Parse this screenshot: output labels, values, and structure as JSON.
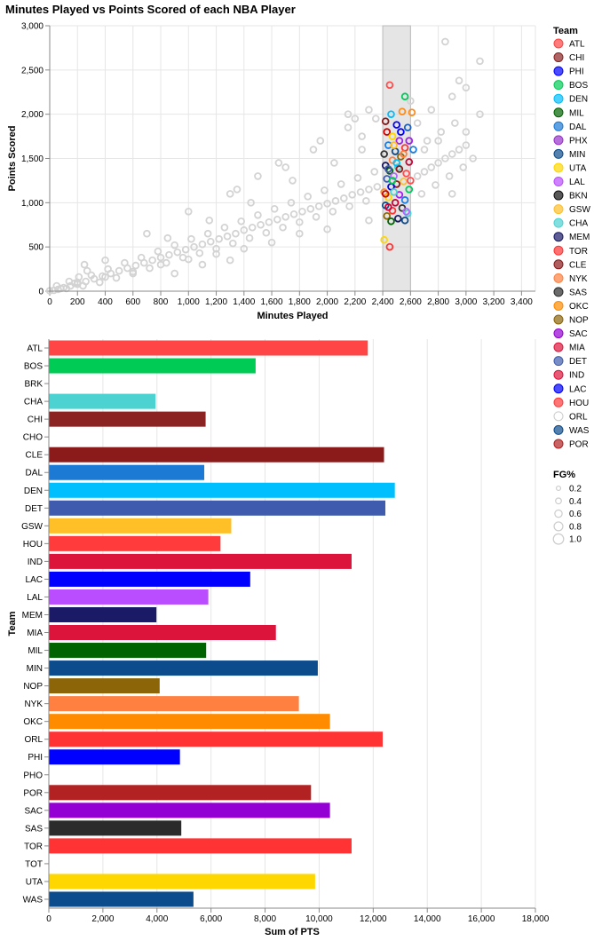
{
  "colors": {
    "grid": "#e6e6e6",
    "axis": "#888888",
    "unselected": "#d3d3d3",
    "brush": "#cccccc"
  },
  "chart_data": [
    {
      "type": "scatter",
      "title": "Minutes Played vs Points Scored of each NBA Player",
      "xlabel": "Minutes Played",
      "ylabel": "Points Scored",
      "xlim": [
        0,
        3500
      ],
      "ylim": [
        0,
        3000
      ],
      "x_ticks": [
        "0",
        "200",
        "400",
        "600",
        "800",
        "1,000",
        "1,200",
        "1,400",
        "1,600",
        "1,800",
        "2,000",
        "2,200",
        "2,400",
        "2,600",
        "2,800",
        "3,000",
        "3,200",
        "3,400"
      ],
      "y_ticks": [
        "0",
        "500",
        "1,000",
        "1,500",
        "2,000",
        "2,500",
        "3,000"
      ],
      "brush_x": [
        2400,
        2600
      ],
      "unselected_points": [
        [
          0,
          5
        ],
        [
          30,
          10
        ],
        [
          60,
          20
        ],
        [
          100,
          40
        ],
        [
          150,
          60
        ],
        [
          200,
          80
        ],
        [
          260,
          110
        ],
        [
          320,
          140
        ],
        [
          380,
          170
        ],
        [
          440,
          200
        ],
        [
          500,
          230
        ],
        [
          560,
          260
        ],
        [
          620,
          290
        ],
        [
          680,
          320
        ],
        [
          740,
          350
        ],
        [
          800,
          380
        ],
        [
          860,
          410
        ],
        [
          920,
          440
        ],
        [
          980,
          470
        ],
        [
          1040,
          500
        ],
        [
          1100,
          530
        ],
        [
          1160,
          560
        ],
        [
          1220,
          590
        ],
        [
          1280,
          620
        ],
        [
          1340,
          650
        ],
        [
          1400,
          690
        ],
        [
          1460,
          720
        ],
        [
          1520,
          750
        ],
        [
          1580,
          780
        ],
        [
          1640,
          810
        ],
        [
          1700,
          840
        ],
        [
          1760,
          870
        ],
        [
          1820,
          900
        ],
        [
          1880,
          930
        ],
        [
          1940,
          960
        ],
        [
          2000,
          990
        ],
        [
          2060,
          1020
        ],
        [
          2120,
          1050
        ],
        [
          2180,
          1090
        ],
        [
          2240,
          1120
        ],
        [
          2300,
          1150
        ],
        [
          2360,
          1180
        ],
        [
          2650,
          1300
        ],
        [
          2700,
          1350
        ],
        [
          2750,
          1400
        ],
        [
          2800,
          1450
        ],
        [
          2850,
          1500
        ],
        [
          2900,
          1550
        ],
        [
          2950,
          1600
        ],
        [
          3000,
          1650
        ],
        [
          120,
          30
        ],
        [
          180,
          90
        ],
        [
          240,
          60
        ],
        [
          300,
          180
        ],
        [
          360,
          100
        ],
        [
          420,
          250
        ],
        [
          480,
          150
        ],
        [
          540,
          320
        ],
        [
          600,
          200
        ],
        [
          660,
          380
        ],
        [
          720,
          260
        ],
        [
          780,
          450
        ],
        [
          840,
          320
        ],
        [
          900,
          520
        ],
        [
          960,
          380
        ],
        [
          1020,
          590
        ],
        [
          1080,
          430
        ],
        [
          1140,
          650
        ],
        [
          1200,
          480
        ],
        [
          1260,
          720
        ],
        [
          1320,
          540
        ],
        [
          1380,
          790
        ],
        [
          1440,
          600
        ],
        [
          1500,
          860
        ],
        [
          1560,
          660
        ],
        [
          1620,
          930
        ],
        [
          1680,
          720
        ],
        [
          1740,
          1000
        ],
        [
          1800,
          780
        ],
        [
          1860,
          1070
        ],
        [
          1920,
          840
        ],
        [
          1980,
          1140
        ],
        [
          2040,
          900
        ],
        [
          2100,
          1210
        ],
        [
          2160,
          960
        ],
        [
          2220,
          1280
        ],
        [
          2280,
          1020
        ],
        [
          2340,
          1350
        ],
        [
          2680,
          1100
        ],
        [
          2720,
          1700
        ],
        [
          2780,
          1200
        ],
        [
          2820,
          1800
        ],
        [
          2880,
          1300
        ],
        [
          2920,
          1900
        ],
        [
          2980,
          1400
        ],
        [
          3050,
          1500
        ],
        [
          3100,
          2000
        ],
        [
          2850,
          2820
        ],
        [
          3100,
          2600
        ],
        [
          2950,
          2380
        ],
        [
          2300,
          2050
        ],
        [
          2200,
          1950
        ],
        [
          2150,
          2000
        ],
        [
          1900,
          1600
        ],
        [
          1700,
          1400
        ],
        [
          1500,
          1300
        ],
        [
          1300,
          1100
        ],
        [
          1000,
          900
        ],
        [
          700,
          650
        ],
        [
          400,
          350
        ],
        [
          250,
          300
        ],
        [
          850,
          600
        ],
        [
          1150,
          800
        ],
        [
          1450,
          1000
        ],
        [
          1750,
          1250
        ],
        [
          2050,
          1450
        ],
        [
          2250,
          1600
        ],
        [
          2650,
          1900
        ],
        [
          2750,
          2050
        ],
        [
          2900,
          2200
        ],
        [
          3000,
          2300
        ],
        [
          2700,
          1600
        ],
        [
          2800,
          1700
        ],
        [
          3000,
          1800
        ],
        [
          2600,
          2150
        ],
        [
          2900,
          1100
        ],
        [
          2300,
          800
        ],
        [
          2000,
          700
        ],
        [
          1800,
          650
        ],
        [
          1600,
          550
        ],
        [
          1400,
          480
        ],
        [
          1200,
          420
        ],
        [
          1000,
          360
        ],
        [
          800,
          300
        ],
        [
          600,
          220
        ],
        [
          400,
          160
        ],
        [
          200,
          100
        ],
        [
          1350,
          1150
        ],
        [
          1650,
          1450
        ],
        [
          1950,
          1700
        ],
        [
          2150,
          1850
        ],
        [
          2250,
          1750
        ],
        [
          2350,
          1950
        ],
        [
          900,
          200
        ],
        [
          1100,
          300
        ],
        [
          1300,
          350
        ],
        [
          50,
          60
        ],
        [
          80,
          30
        ],
        [
          140,
          110
        ],
        [
          210,
          160
        ],
        [
          270,
          230
        ]
      ],
      "selected_points": [
        {
          "x": 2450,
          "y": 2330,
          "c": "#ff4d4d"
        },
        {
          "x": 2420,
          "y": 1920,
          "c": "#8b1a1a"
        },
        {
          "x": 2560,
          "y": 2200,
          "c": "#00c85a"
        },
        {
          "x": 2540,
          "y": 2030,
          "c": "#ff8c1a"
        },
        {
          "x": 2460,
          "y": 2000,
          "c": "#00bfff"
        },
        {
          "x": 2500,
          "y": 1880,
          "c": "#0000ff"
        },
        {
          "x": 2580,
          "y": 1850,
          "c": "#1a5fbf"
        },
        {
          "x": 2430,
          "y": 1800,
          "c": "#d40000"
        },
        {
          "x": 2470,
          "y": 1750,
          "c": "#ffd700"
        },
        {
          "x": 2520,
          "y": 1700,
          "c": "#a020f0"
        },
        {
          "x": 2440,
          "y": 1650,
          "c": "#1c7ce0"
        },
        {
          "x": 2560,
          "y": 1620,
          "c": "#ff3333"
        },
        {
          "x": 2490,
          "y": 1580,
          "c": "#0d4c8c"
        },
        {
          "x": 2410,
          "y": 1550,
          "c": "#333333"
        },
        {
          "x": 2530,
          "y": 1520,
          "c": "#8b6508"
        },
        {
          "x": 2470,
          "y": 1480,
          "c": "#ff8040"
        },
        {
          "x": 2590,
          "y": 1460,
          "c": "#cc0033"
        },
        {
          "x": 2420,
          "y": 1420,
          "c": "#1a1a66"
        },
        {
          "x": 2510,
          "y": 1400,
          "c": "#4dd2cc"
        },
        {
          "x": 2450,
          "y": 1360,
          "c": "#006400"
        },
        {
          "x": 2570,
          "y": 1330,
          "c": "#ff4d4d"
        },
        {
          "x": 2480,
          "y": 1300,
          "c": "#b266ff"
        },
        {
          "x": 2430,
          "y": 1270,
          "c": "#3f5bad"
        },
        {
          "x": 2550,
          "y": 1240,
          "c": "#ffbf26"
        },
        {
          "x": 2500,
          "y": 1210,
          "c": "#8b1a1a"
        },
        {
          "x": 2460,
          "y": 1180,
          "c": "#0000ff"
        },
        {
          "x": 2590,
          "y": 1150,
          "c": "#00c85a"
        },
        {
          "x": 2410,
          "y": 1120,
          "c": "#ff8c1a"
        },
        {
          "x": 2520,
          "y": 1090,
          "c": "#a020f0"
        },
        {
          "x": 2440,
          "y": 1060,
          "c": "#ffd700"
        },
        {
          "x": 2560,
          "y": 1030,
          "c": "#1c7ce0"
        },
        {
          "x": 2490,
          "y": 1000,
          "c": "#cc0033"
        },
        {
          "x": 2420,
          "y": 970,
          "c": "#0d4c8c"
        },
        {
          "x": 2540,
          "y": 940,
          "c": "#333333"
        },
        {
          "x": 2470,
          "y": 910,
          "c": "#ff3333"
        },
        {
          "x": 2580,
          "y": 880,
          "c": "#4dd2cc"
        },
        {
          "x": 2430,
          "y": 850,
          "c": "#8b6508"
        },
        {
          "x": 2510,
          "y": 820,
          "c": "#1a1a66"
        },
        {
          "x": 2460,
          "y": 790,
          "c": "#006400"
        },
        {
          "x": 2570,
          "y": 900,
          "c": "#b266ff"
        },
        {
          "x": 2500,
          "y": 1450,
          "c": "#00bfff"
        },
        {
          "x": 2440,
          "y": 1380,
          "c": "#3f5bad"
        },
        {
          "x": 2550,
          "y": 1550,
          "c": "#ff8040"
        },
        {
          "x": 2480,
          "y": 1650,
          "c": "#ffbf26"
        },
        {
          "x": 2420,
          "y": 1100,
          "c": "#d40000"
        },
        {
          "x": 2600,
          "y": 1250,
          "c": "#ff4d4d"
        },
        {
          "x": 2530,
          "y": 1800,
          "c": "#0000ff"
        },
        {
          "x": 2470,
          "y": 1250,
          "c": "#00c85a"
        },
        {
          "x": 2590,
          "y": 1700,
          "c": "#a020f0"
        },
        {
          "x": 2450,
          "y": 500,
          "c": "#ff3333"
        },
        {
          "x": 2410,
          "y": 580,
          "c": "#ffd700"
        },
        {
          "x": 2620,
          "y": 1600,
          "c": "#1c7ce0"
        },
        {
          "x": 2610,
          "y": 2020,
          "c": "#ff8c1a"
        },
        {
          "x": 2520,
          "y": 1380,
          "c": "#8b1a1a"
        },
        {
          "x": 2440,
          "y": 950,
          "c": "#cc0033"
        },
        {
          "x": 2560,
          "y": 800,
          "c": "#0d4c8c"
        },
        {
          "x": 2480,
          "y": 1120,
          "c": "#4dd2cc"
        }
      ]
    },
    {
      "type": "bar",
      "orientation": "horizontal",
      "xlabel": "Sum of PTS",
      "ylabel": "Team",
      "xlim": [
        0,
        18000
      ],
      "x_ticks": [
        "0",
        "2,000",
        "4,000",
        "6,000",
        "8,000",
        "10,000",
        "12,000",
        "14,000",
        "16,000",
        "18,000"
      ],
      "categories": [
        "ATL",
        "BOS",
        "BRK",
        "CHA",
        "CHI",
        "CHO",
        "CLE",
        "DAL",
        "DEN",
        "DET",
        "GSW",
        "HOU",
        "IND",
        "LAC",
        "LAL",
        "MEM",
        "MIA",
        "MIL",
        "MIN",
        "NOP",
        "NYK",
        "OKC",
        "ORL",
        "PHI",
        "PHO",
        "POR",
        "SAC",
        "SAS",
        "TOR",
        "TOT",
        "UTA",
        "WAS"
      ],
      "values": [
        11800,
        7650,
        0,
        3950,
        5800,
        0,
        12400,
        5750,
        12800,
        12450,
        6750,
        6350,
        11200,
        7450,
        5900,
        3980,
        8400,
        5820,
        9950,
        4100,
        9250,
        10400,
        12350,
        4850,
        0,
        9700,
        10400,
        4900,
        11200,
        0,
        9850,
        5350
      ],
      "colors": [
        "#ff4545",
        "#00cc55",
        "#cccccc",
        "#4dd2d2",
        "#8b2323",
        "#cccccc",
        "#8b1a1a",
        "#1c7ad4",
        "#00bfff",
        "#3f5bad",
        "#ffbf26",
        "#ff3b3b",
        "#dc143c",
        "#0000ff",
        "#b94dff",
        "#1a1a66",
        "#dc143c",
        "#006400",
        "#0d4c8c",
        "#8b6508",
        "#ff8040",
        "#ff8c00",
        "#ff3333",
        "#0000ff",
        "#cccccc",
        "#b22222",
        "#9400d3",
        "#2b2b2b",
        "#ff3333",
        "#cccccc",
        "#ffd700",
        "#0d4c8c"
      ]
    }
  ],
  "legend": {
    "team_title": "Team",
    "teams": [
      {
        "name": "ATL",
        "color": "#ff4545"
      },
      {
        "name": "CHI",
        "color": "#8b2323"
      },
      {
        "name": "PHI",
        "color": "#0000ff"
      },
      {
        "name": "BOS",
        "color": "#00cc55"
      },
      {
        "name": "DEN",
        "color": "#00bfff"
      },
      {
        "name": "MIL",
        "color": "#006400"
      },
      {
        "name": "DAL",
        "color": "#1c7ad4"
      },
      {
        "name": "PHX",
        "color": "#9932cc"
      },
      {
        "name": "MIN",
        "color": "#0d4c8c"
      },
      {
        "name": "UTA",
        "color": "#ffd700"
      },
      {
        "name": "LAL",
        "color": "#b94dff"
      },
      {
        "name": "BKN",
        "color": "#111111"
      },
      {
        "name": "GSW",
        "color": "#ffbf26"
      },
      {
        "name": "CHA",
        "color": "#4dd2d2"
      },
      {
        "name": "MEM",
        "color": "#1a1a66"
      },
      {
        "name": "TOR",
        "color": "#ff3333"
      },
      {
        "name": "CLE",
        "color": "#8b1a1a"
      },
      {
        "name": "NYK",
        "color": "#ff8040"
      },
      {
        "name": "SAS",
        "color": "#2b2b2b"
      },
      {
        "name": "OKC",
        "color": "#ff8c00"
      },
      {
        "name": "NOP",
        "color": "#8b6508"
      },
      {
        "name": "SAC",
        "color": "#9400d3"
      },
      {
        "name": "MIA",
        "color": "#dc143c"
      },
      {
        "name": "DET",
        "color": "#3f5bad"
      },
      {
        "name": "IND",
        "color": "#dc143c"
      },
      {
        "name": "LAC",
        "color": "#0000ff"
      },
      {
        "name": "HOU",
        "color": "#ff3b3b"
      },
      {
        "name": "ORL",
        "color": "#ffffff"
      },
      {
        "name": "WAS",
        "color": "#0d4c8c"
      },
      {
        "name": "POR",
        "color": "#b22222"
      }
    ],
    "size_title": "FG%",
    "sizes": [
      {
        "label": "0.2",
        "value": 0.2
      },
      {
        "label": "0.4",
        "value": 0.4
      },
      {
        "label": "0.6",
        "value": 0.6
      },
      {
        "label": "0.8",
        "value": 0.8
      },
      {
        "label": "1.0",
        "value": 1.0
      }
    ]
  }
}
